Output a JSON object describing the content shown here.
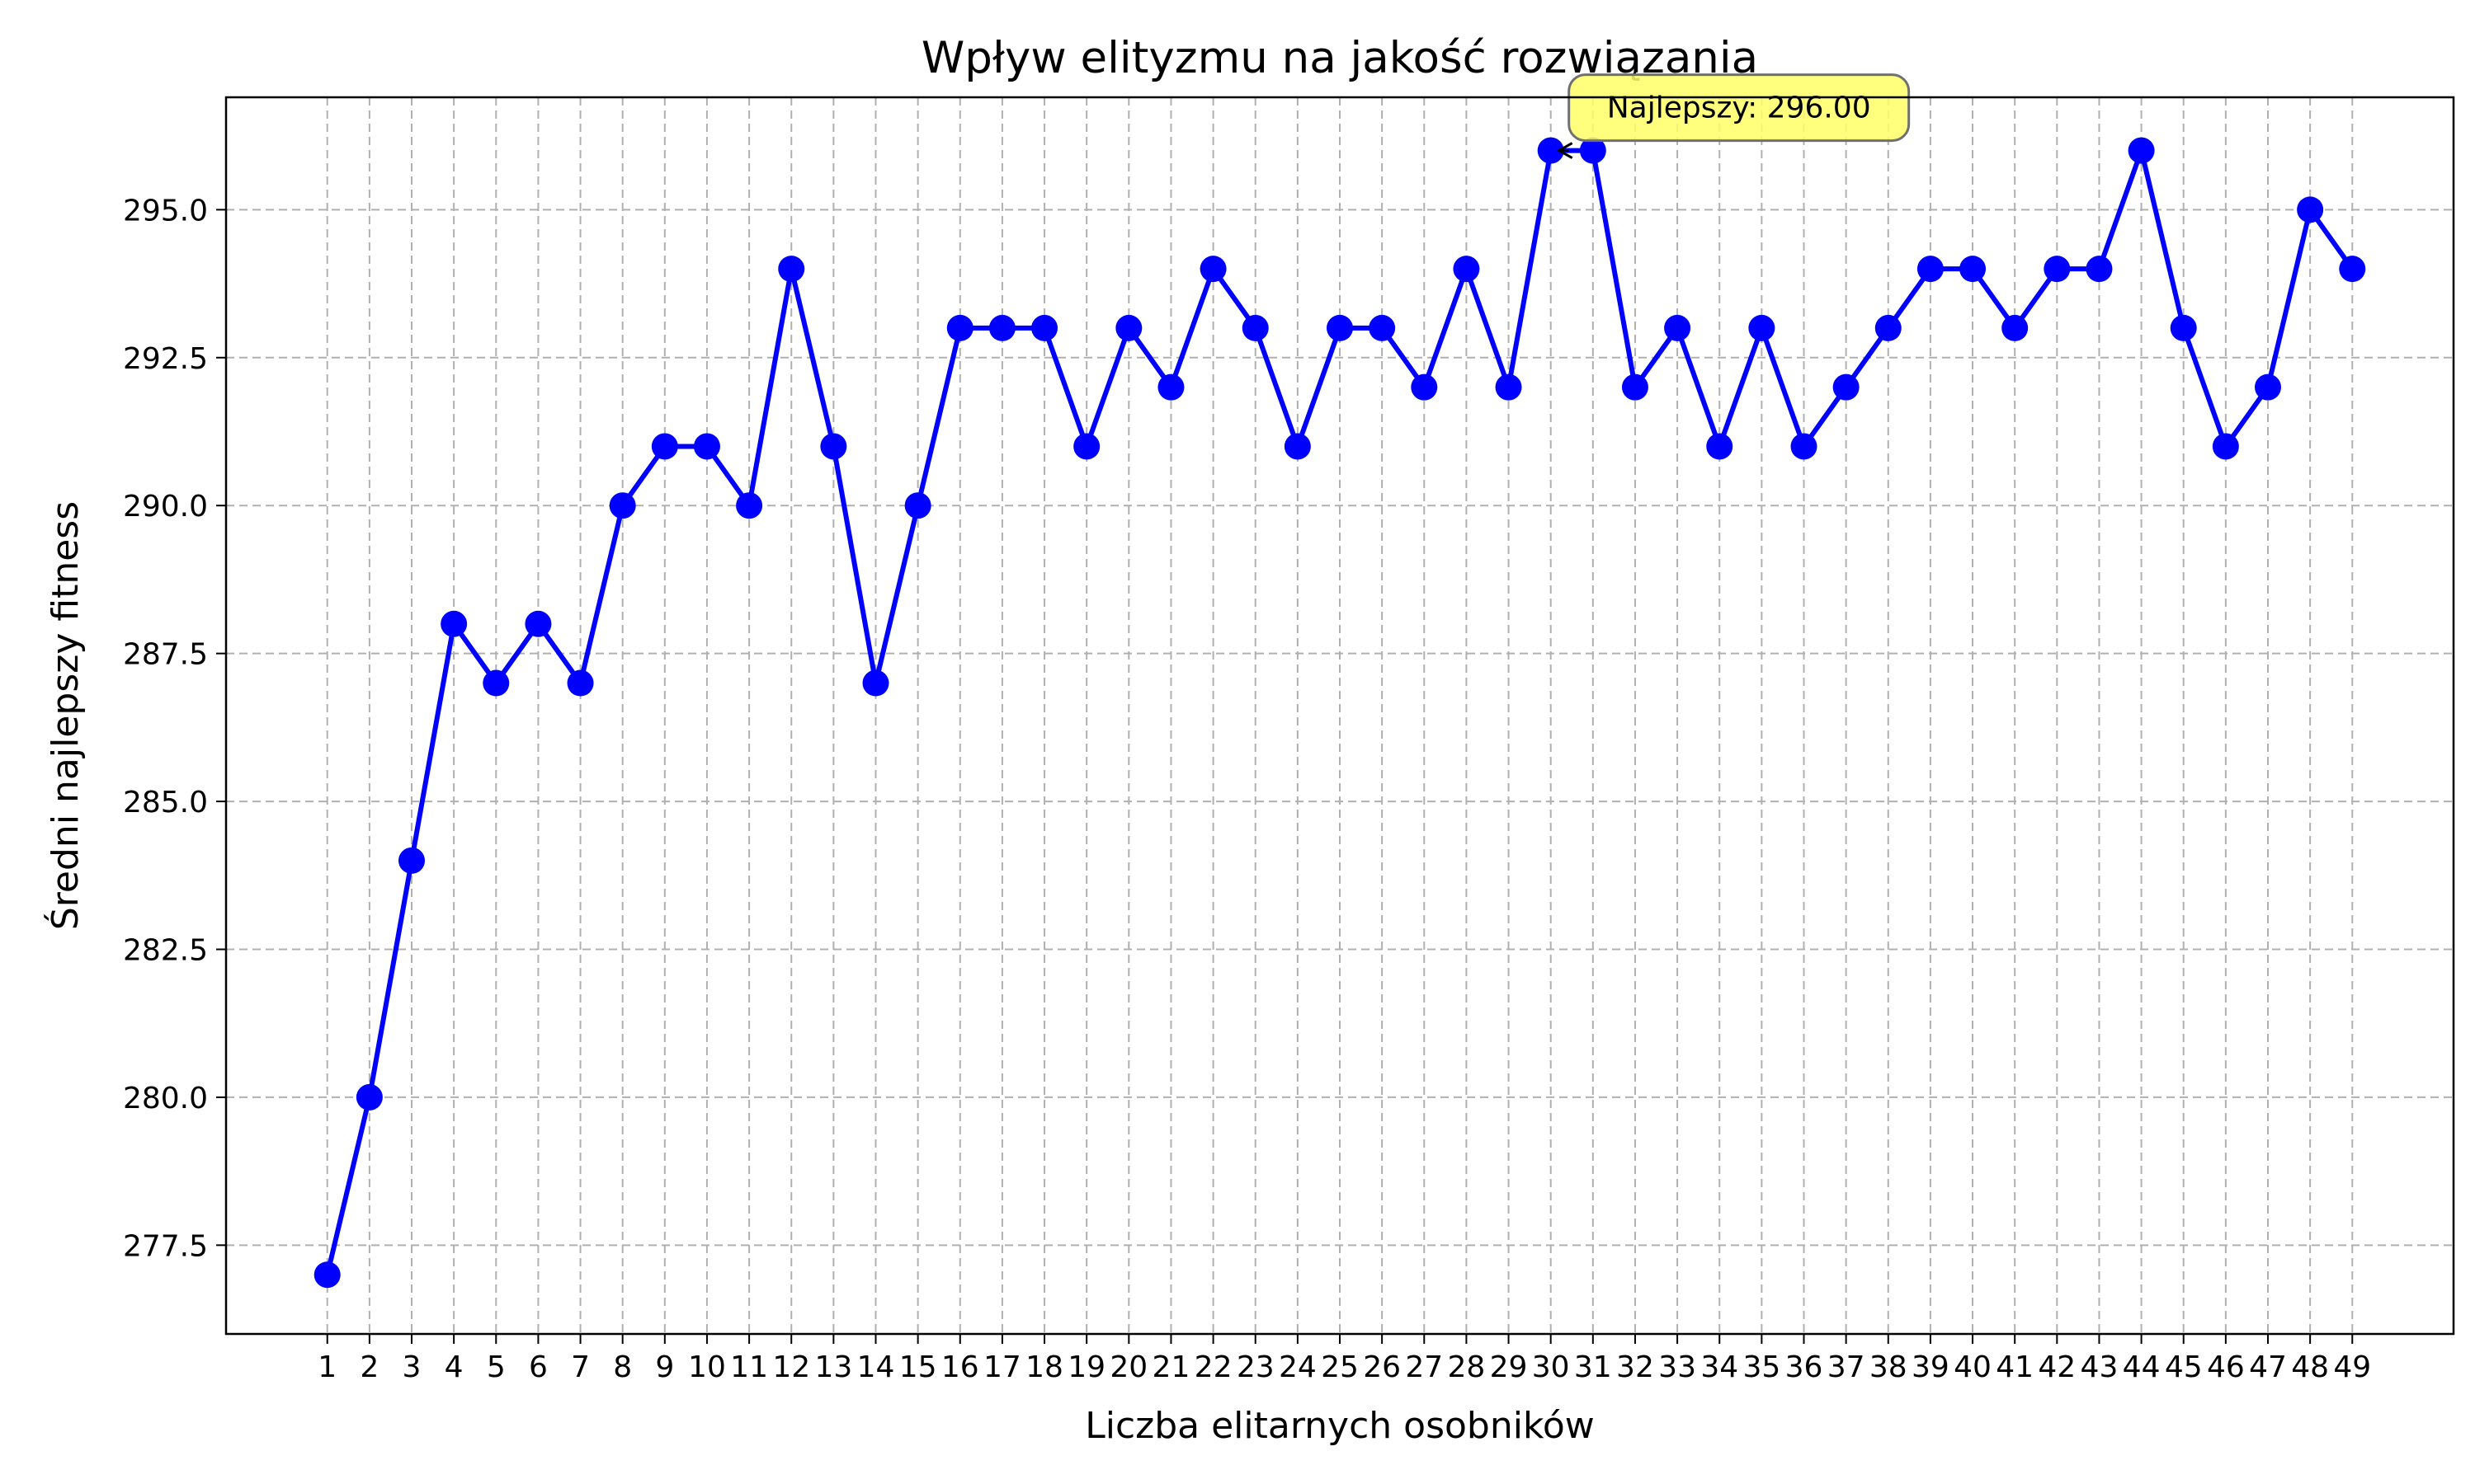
{
  "chart_data": {
    "type": "line",
    "title": "Wpływ elityzmu na jakość rozwiązania",
    "xlabel": "Liczba elitarnych osobników",
    "ylabel": "Średni najlepszy fitness",
    "x": [
      1,
      2,
      3,
      4,
      5,
      6,
      7,
      8,
      9,
      10,
      11,
      12,
      13,
      14,
      15,
      16,
      17,
      18,
      19,
      20,
      21,
      22,
      23,
      24,
      25,
      26,
      27,
      28,
      29,
      30,
      31,
      32,
      33,
      34,
      35,
      36,
      37,
      38,
      39,
      40,
      41,
      42,
      43,
      44,
      45,
      46,
      47,
      48,
      49
    ],
    "series": [
      {
        "values": [
          277,
          280,
          284,
          288,
          287,
          288,
          287,
          290,
          291,
          291,
          290,
          294,
          291,
          287,
          290,
          293,
          293,
          293,
          291,
          293,
          292,
          294,
          293,
          291,
          293,
          293,
          292,
          294,
          292,
          296,
          296,
          292,
          293,
          291,
          293,
          291,
          292,
          293,
          294,
          294,
          293,
          294,
          294,
          296,
          293,
          291,
          292,
          295,
          294
        ],
        "color": "#0000ff",
        "marker": "circle"
      }
    ],
    "xlim": [
      -1.4,
      51.4
    ],
    "ylim": [
      276,
      296.9
    ],
    "yticks": [
      277.5,
      280.0,
      282.5,
      285.0,
      287.5,
      290.0,
      292.5,
      295.0
    ],
    "ytick_labels": [
      "277.5",
      "280.0",
      "282.5",
      "285.0",
      "287.5",
      "290.0",
      "292.5",
      "295.0"
    ],
    "grid": true,
    "annotation": {
      "text": "Najlepszy: 296.00",
      "x": 30,
      "y": 296,
      "box_color": "#ffff66"
    }
  }
}
